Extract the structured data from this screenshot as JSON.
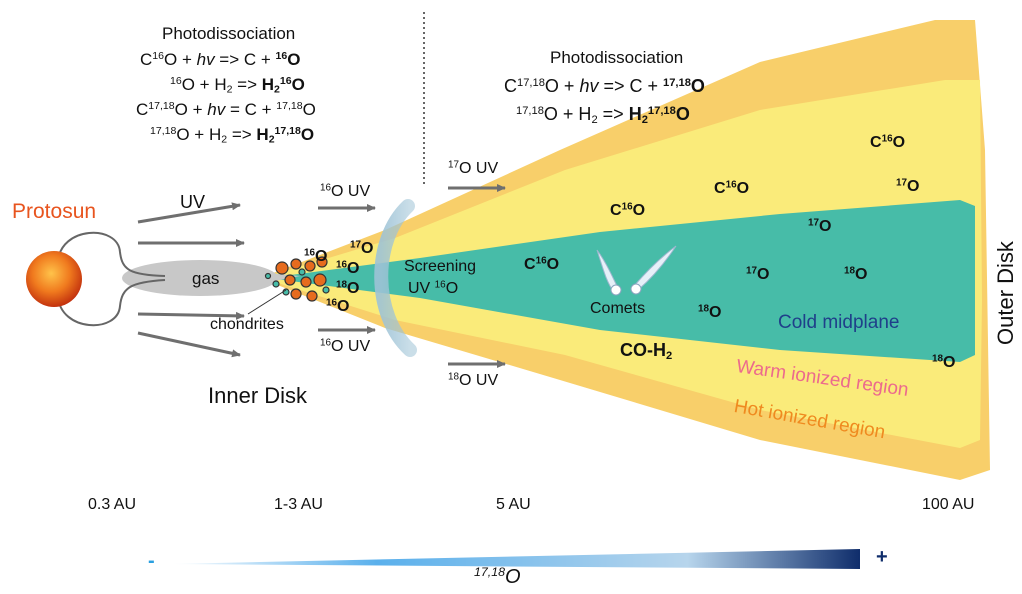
{
  "labels": {
    "protosun": "Protosun",
    "uv": "UV",
    "gas": "gas",
    "chondrites": "chondrites",
    "inner_disk": "Inner Disk",
    "outer_disk": "Outer Disk",
    "screening_line1": "Screening",
    "screening_line2_prefix": "UV ",
    "comets": "Comets",
    "cold_midplane": "Cold midplane",
    "warm_ionized": "Warm ionized region",
    "hot_ionized": "Hot ionized region",
    "photodissociation_left": "Photodissociation",
    "photodissociation_right": "Photodissociation",
    "co_h2": "CO-H",
    "uv_16": "O UV",
    "uv_17": "O UV",
    "uv_18": "O UV"
  },
  "distances": [
    "0.3 AU",
    "1-3 AU",
    "5 AU",
    "100 AU"
  ],
  "gradient": {
    "minus": "-",
    "plus": "+",
    "label_sup": "17,18",
    "label_o": "O"
  },
  "colors": {
    "outer_band": "#f8cf6a",
    "middle_band": "#faeb7a",
    "midplane": "#47bca8",
    "protosun": "#e8541e",
    "warm_text": "#ec6a8d",
    "hot_text": "#ef8a1f",
    "cold_text": "#1f3f8a",
    "gradient_start": "#cfe9fb",
    "gradient_end": "#0f2d6b",
    "arrow": "#6f6f6f"
  }
}
